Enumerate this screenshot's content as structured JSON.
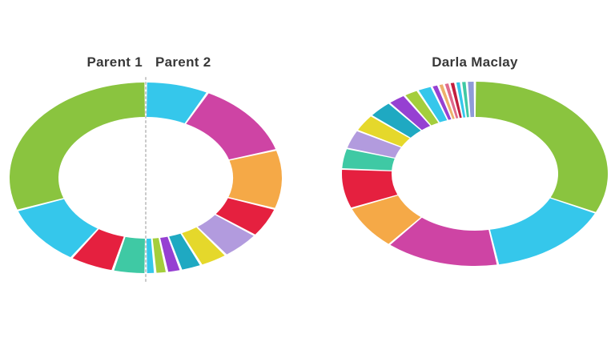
{
  "page": {
    "background": "#ffffff",
    "title_color": "#383838"
  },
  "left_chart": {
    "title_left": "Parent 1",
    "title_right": "Parent 2"
  },
  "right_chart": {
    "title": "Darla Maclay"
  },
  "chart_data": [
    {
      "type": "pie",
      "variant": "split-donut",
      "titles": [
        "Parent 1",
        "Parent 2"
      ],
      "divider": {
        "style": "dotted",
        "color": "#c9c9c9"
      },
      "values_are": "estimated_sweep_degrees",
      "halves": [
        {
          "label": "Parent 1",
          "start_deg": 180,
          "span_deg": 180,
          "segments": [
            {
              "color_name": "teal",
              "color": "#3FC9A4",
              "sweep_deg": 14
            },
            {
              "color_name": "red",
              "color": "#E5203F",
              "sweep_deg": 19
            },
            {
              "color_name": "cyan",
              "color": "#35C7EB",
              "sweep_deg": 37
            },
            {
              "color_name": "green",
              "color": "#8AC43F",
              "sweep_deg": 110
            }
          ]
        },
        {
          "label": "Parent 2",
          "start_deg": 0,
          "span_deg": 180,
          "segments": [
            {
              "color_name": "cyan",
              "color": "#35C7EB",
              "sweep_deg": 27
            },
            {
              "color_name": "magenta",
              "color": "#CE44A4",
              "sweep_deg": 46
            },
            {
              "color_name": "orange",
              "color": "#F5A947",
              "sweep_deg": 36
            },
            {
              "color_name": "red",
              "color": "#E5203F",
              "sweep_deg": 18
            },
            {
              "color_name": "lavender",
              "color": "#B29BDE",
              "sweep_deg": 17
            },
            {
              "color_name": "yellow",
              "color": "#E5D82B",
              "sweep_deg": 12
            },
            {
              "color_name": "teal-blue",
              "color": "#1FA9C2",
              "sweep_deg": 9
            },
            {
              "color_name": "violet",
              "color": "#9640D2",
              "sweep_deg": 6
            },
            {
              "color_name": "light-green",
              "color": "#A4CE3C",
              "sweep_deg": 5
            },
            {
              "color_name": "cyan",
              "color": "#35C7EB",
              "sweep_deg": 4
            }
          ]
        }
      ]
    },
    {
      "type": "pie",
      "variant": "donut",
      "title": "Darla Maclay",
      "start_deg": 0,
      "span_deg": 360,
      "values_are": "estimated_sweep_degrees",
      "segments": [
        {
          "color_name": "green",
          "color": "#8AC43F",
          "sweep_deg": 115
        },
        {
          "color_name": "cyan",
          "color": "#35C7EB",
          "sweep_deg": 55
        },
        {
          "color_name": "magenta",
          "color": "#CE44A4",
          "sweep_deg": 50
        },
        {
          "color_name": "orange",
          "color": "#F5A947",
          "sweep_deg": 28
        },
        {
          "color_name": "red",
          "color": "#E5203F",
          "sweep_deg": 25
        },
        {
          "color_name": "teal",
          "color": "#3FC9A4",
          "sweep_deg": 13
        },
        {
          "color_name": "lavender",
          "color": "#B29BDE",
          "sweep_deg": 12
        },
        {
          "color_name": "yellow",
          "color": "#E5D82B",
          "sweep_deg": 11
        },
        {
          "color_name": "teal-blue",
          "color": "#1FA9C2",
          "sweep_deg": 11
        },
        {
          "color_name": "violet",
          "color": "#9640D2",
          "sweep_deg": 8
        },
        {
          "color_name": "light-green",
          "color": "#A4CE3C",
          "sweep_deg": 6.5
        },
        {
          "color_name": "cyan",
          "color": "#35C7EB",
          "sweep_deg": 6.5
        },
        {
          "color_name": "violet",
          "color": "#9640D2",
          "sweep_deg": 3
        },
        {
          "color_name": "tan",
          "color": "#EDB06B",
          "sweep_deg": 2.5
        },
        {
          "color_name": "pink",
          "color": "#E06A8C",
          "sweep_deg": 2.5
        },
        {
          "color_name": "dark-red",
          "color": "#C21F3E",
          "sweep_deg": 2.5
        },
        {
          "color_name": "cyan",
          "color": "#35C7EB",
          "sweep_deg": 2.5
        },
        {
          "color_name": "teal",
          "color": "#3FC9A4",
          "sweep_deg": 2.5
        },
        {
          "color_name": "periwinkle",
          "color": "#8F9BD9",
          "sweep_deg": 3.5
        }
      ]
    }
  ]
}
